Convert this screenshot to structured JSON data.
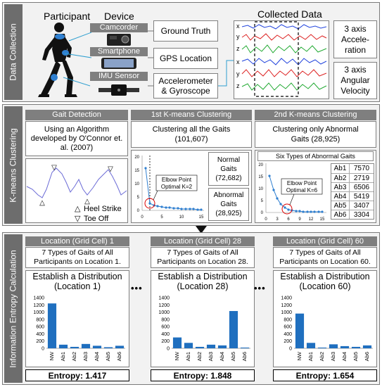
{
  "sections": {
    "data_collection": "Data Collection",
    "kmeans": "K-means Clustering",
    "entropy": "Information Entropy Calculation"
  },
  "collection": {
    "participant": "Participant",
    "device": "Device",
    "collected_data": "Collected Data",
    "camcorder": "Camcorder",
    "smartphone": "Smartphone",
    "imu_sensor": "IMU Sensor",
    "ground_truth": "Ground Truth",
    "gps_location": "GPS Location",
    "accel_gyro_1": "Accelerometer",
    "accel_gyro_2": "& Gyroscope",
    "accel_axis_1": "3 axis",
    "accel_axis_2": "Accele-",
    "accel_axis_3": "ration",
    "angular_axis_1": "3 axis",
    "angular_axis_2": "Angular",
    "angular_axis_3": "Velocity",
    "axis_x": "x",
    "axis_y": "y",
    "axis_z": "z"
  },
  "gait": {
    "title": "Gait Detection",
    "desc_1": "Using an Algorithm",
    "desc_2": "developed by O'Connor et.",
    "desc_3": "al. (2007)",
    "heel_strike": "Heel Strike",
    "toe_off": "Toe Off"
  },
  "kmeans1": {
    "title": "1st K-means Clustering",
    "desc_1": "Clustering all the Gaits",
    "desc_2": "(101,607)",
    "elbow_1": "Elbow Point",
    "elbow_2": "Optimal K=2",
    "normal_1": "Normal",
    "normal_2": "Gaits",
    "normal_3": "(72,682)",
    "abnormal_1": "Abnormal",
    "abnormal_2": "Gaits",
    "abnormal_3": "(28,925)",
    "y_ticks": [
      "20",
      "15",
      "10",
      "5",
      "0"
    ],
    "x_ticks": [
      "0",
      "5",
      "10",
      "15"
    ]
  },
  "kmeans2": {
    "title": "2nd K-means Clustering",
    "desc_1": "Clustering only Abnormal",
    "desc_2": "Gaits (28,925)",
    "six_types": "Six Types of Abnormal Gaits",
    "elbow_1": "Elbow Point",
    "elbow_2": "Optimal K=6",
    "y_ticks": [
      "20",
      "15",
      "10",
      "5",
      "0"
    ],
    "x_ticks": [
      "0",
      "3",
      "6",
      "9",
      "12",
      "15"
    ],
    "table": [
      {
        "type": "Ab1",
        "count": "7570"
      },
      {
        "type": "Ab2",
        "count": "2719"
      },
      {
        "type": "Ab3",
        "count": "6506"
      },
      {
        "type": "Ab4",
        "count": "5419"
      },
      {
        "type": "Ab5",
        "count": "3407"
      },
      {
        "type": "Ab6",
        "count": "3304"
      }
    ]
  },
  "ellipsis": "•••",
  "chart_data": [
    {
      "type": "bar",
      "header": "Location  (Grid Cell) 1",
      "subtitle_1": "7 Types of Gaits of All",
      "subtitle_2": "Participants on Location 1.",
      "title_1": "Establish a Distribution",
      "title_2": "(Location 1)",
      "categories": [
        "NW",
        "Ab1",
        "Ab2",
        "Ab3",
        "Ab4",
        "Ab5",
        "Ab6"
      ],
      "values": [
        1240,
        100,
        40,
        120,
        70,
        30,
        70
      ],
      "y_ticks": [
        "1400",
        "1200",
        "1000",
        "800",
        "600",
        "400",
        "200",
        "0"
      ],
      "ylim": [
        0,
        1400
      ],
      "entropy": "Entropy: 1.417",
      "color": "#1f6fbf"
    },
    {
      "type": "bar",
      "header": "Location  (Grid Cell) 28",
      "subtitle_1": "7 Types of Gaits of All",
      "subtitle_2": "Participants on Location 28.",
      "title_1": "Establish a Distribution",
      "title_2": "(Location 28)",
      "categories": [
        "NW",
        "Ab1",
        "Ab2",
        "Ab3",
        "Ab4",
        "Ab5",
        "Ab6"
      ],
      "values": [
        300,
        150,
        40,
        100,
        80,
        1030,
        20
      ],
      "y_ticks": [
        "1400",
        "1200",
        "1000",
        "800",
        "600",
        "400",
        "200",
        "0"
      ],
      "ylim": [
        0,
        1400
      ],
      "entropy": "Entropy: 1.848",
      "color": "#1f6fbf"
    },
    {
      "type": "bar",
      "header": "Location  (Grid Cell) 60",
      "subtitle_1": "7 Types of Gaits of All",
      "subtitle_2": "Participants on Location 60.",
      "title_1": "Establish a Distribution",
      "title_2": "(Location 60)",
      "categories": [
        "NW",
        "Ab1",
        "Ab2",
        "Ab3",
        "Ab4",
        "Ab5",
        "Ab6"
      ],
      "values": [
        960,
        150,
        20,
        110,
        60,
        40,
        80
      ],
      "y_ticks": [
        "1400",
        "1200",
        "1000",
        "800",
        "600",
        "400",
        "200",
        "0"
      ],
      "ylim": [
        0,
        1400
      ],
      "entropy": "Entropy: 1.654",
      "color": "#1f6fbf"
    }
  ]
}
